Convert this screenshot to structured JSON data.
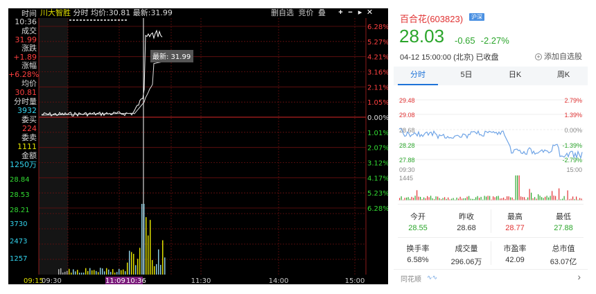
{
  "terminal": {
    "title_stock": "川大智胜",
    "title_label_fenshi": "分时",
    "title_avg_label": "均价:",
    "title_avg": "30.81",
    "title_latest_label": "最新:",
    "title_latest": "31.99",
    "top_links": [
      "删自选",
      "竞价",
      "叠"
    ],
    "buttons": [
      "+",
      "−",
      "▸",
      "✕"
    ],
    "side": {
      "time_label": "时间",
      "time": "10:36",
      "trade_label": "成交",
      "trade": "31.99",
      "change_label": "涨跌",
      "change": "+1.89",
      "pct_label": "涨幅",
      "pct": "+6.28%",
      "avg_label": "均价",
      "avg": "30.81",
      "vol_label": "分时量",
      "vol": "3932",
      "bid_label": "委买",
      "bid": "224",
      "ask_label": "委卖",
      "ask": "1111",
      "amount_label": "金额",
      "amount": "1250万"
    },
    "left_axis_prices": [
      "28.84",
      "28.53",
      "28.21"
    ],
    "left_axis_volumes": [
      "3730",
      "2473",
      "1257"
    ],
    "right_axis_pct": [
      "6.28%",
      "5.27%",
      "4.21%",
      "3.16%",
      "2.11%",
      "1.05%",
      "0.00%",
      "1.01%",
      "2.07%",
      "3.12%",
      "4.17%",
      "5.23%",
      "6.28%"
    ],
    "x_labels": [
      "09:15",
      "09:30",
      "11:09",
      "10:36",
      "11:30",
      "14:00",
      "15:00"
    ],
    "tooltip": "最新: 31.99",
    "colors": {
      "up": "#ff4040",
      "down": "#33dd33",
      "price_line": "#ffffff",
      "avg_line": "#e0e000",
      "grid": "#8b1a1a"
    }
  },
  "quote": {
    "name": "百合花(603823)",
    "market_badge": "沪深",
    "price": "28.03",
    "change": "-0.65",
    "change_pct": "-2.27%",
    "time": "04-12 15:00:00 (北京)  已收盘",
    "add_favorite": "添加自选股",
    "tabs": [
      "分时",
      "5日",
      "日K",
      "周K"
    ],
    "active_tab": 0,
    "chart_left_labels": [
      "29.48",
      "29.08",
      "28.68",
      "28.28",
      "27.88"
    ],
    "chart_right_labels": [
      "2.79%",
      "1.39%",
      "0.00%",
      "-1.39%",
      "-2.79%"
    ],
    "chart_time_start": "09:30",
    "chart_time_end": "15:00",
    "volume_max": "1445",
    "stats": [
      {
        "label": "今开",
        "value": "28.55",
        "color": "g"
      },
      {
        "label": "昨收",
        "value": "28.68",
        "color": "k"
      },
      {
        "label": "最高",
        "value": "28.77",
        "color": "r"
      },
      {
        "label": "最低",
        "value": "27.88",
        "color": "g"
      },
      {
        "label": "换手率",
        "value": "6.58%",
        "color": "k"
      },
      {
        "label": "成交量",
        "value": "296.06万",
        "color": "k"
      },
      {
        "label": "市盈率",
        "value": "42.09",
        "color": "k"
      },
      {
        "label": "总市值",
        "value": "63.07亿",
        "color": "k"
      }
    ],
    "source": "同花顺",
    "colors": {
      "up": "#e03030",
      "down": "#2aa52a",
      "line": "#6fa4e6",
      "accent": "#1e73d8"
    }
  }
}
